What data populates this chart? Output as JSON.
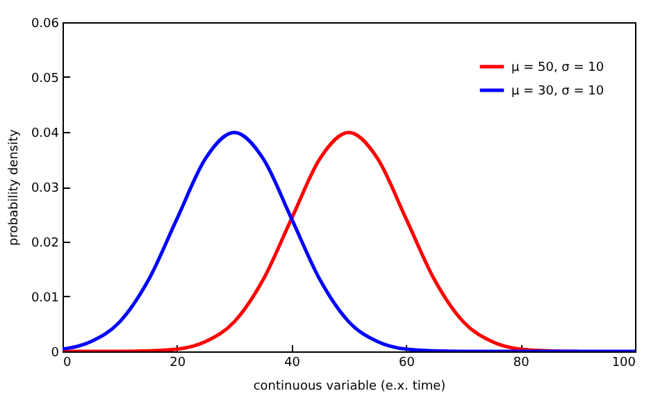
{
  "chart_data": {
    "type": "line",
    "xlabel": "continuous variable (e.x. time)",
    "ylabel": "probability density",
    "x": [
      0,
      5,
      10,
      15,
      20,
      25,
      30,
      35,
      40,
      45,
      50,
      55,
      60,
      65,
      70,
      75,
      80,
      85,
      90,
      95,
      100
    ],
    "series": [
      {
        "name": "μ = 50, σ = 10",
        "color": "#ff0000",
        "values": [
          0,
          0,
          0,
          0.0001,
          0.0004,
          0.0018,
          0.0054,
          0.013,
          0.0242,
          0.0352,
          0.0399,
          0.0352,
          0.0242,
          0.013,
          0.0054,
          0.0018,
          0.0004,
          0.0001,
          0,
          null,
          null
        ]
      },
      {
        "name": "μ = 30, σ = 10",
        "color": "#0000ff",
        "values": [
          0.0004,
          0.0018,
          0.0054,
          0.013,
          0.0242,
          0.0352,
          0.0399,
          0.0352,
          0.0242,
          0.013,
          0.0054,
          0.0018,
          0.0004,
          0.0001,
          0,
          0,
          0,
          0,
          0,
          0,
          0
        ]
      }
    ],
    "xlim": [
      0,
      100
    ],
    "ylim": [
      0,
      0.06
    ],
    "xticks": [
      0,
      20,
      40,
      60,
      80,
      100
    ],
    "yticks": [
      0,
      0.01,
      0.02,
      0.03,
      0.04,
      0.05,
      0.06
    ],
    "legend": "top right"
  }
}
